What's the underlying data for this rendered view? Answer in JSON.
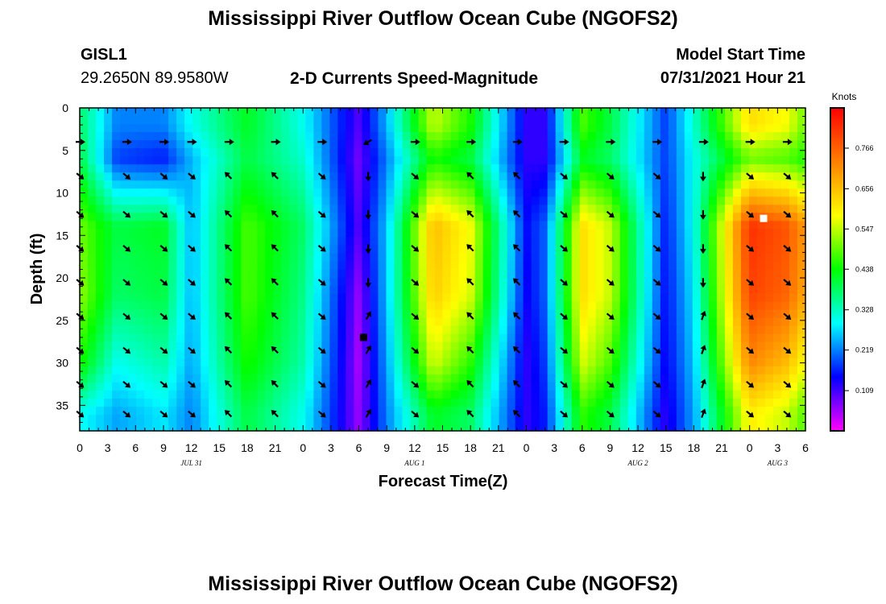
{
  "page": {
    "title_top": "Mississippi River Outflow Ocean Cube (NGOFS2)",
    "title_bottom": "Mississippi River Outflow Ocean Cube (NGOFS2)",
    "station_name": "GISL1",
    "station_coords": "29.2650N  89.9580W",
    "plot_title": "2-D Currents Speed-Magnitude",
    "model_start_label": "Model Start Time",
    "model_start_value": "07/31/2021 Hour 21"
  },
  "chart_data": {
    "type": "heatmap",
    "title": "2-D Currents Speed-Magnitude",
    "xlabel": "Forecast Time(Z)",
    "ylabel": "Depth (ft)",
    "x_tick_labels": [
      "0",
      "3",
      "6",
      "9",
      "12",
      "15",
      "18",
      "21",
      "0",
      "3",
      "6",
      "9",
      "12",
      "15",
      "18",
      "21",
      "0",
      "3",
      "6",
      "9",
      "12",
      "15",
      "18",
      "21",
      "0",
      "3",
      "6"
    ],
    "x_range_hours": [
      0,
      78
    ],
    "date_labels": [
      {
        "label": "JUL 31",
        "hour": 12
      },
      {
        "label": "AUG 1",
        "hour": 36
      },
      {
        "label": "AUG 2",
        "hour": 60
      },
      {
        "label": "AUG 3",
        "hour": 75
      }
    ],
    "y_ticks": [
      0,
      5,
      10,
      15,
      20,
      25,
      30,
      35
    ],
    "ylim": [
      0,
      38
    ],
    "y_inverted": true,
    "colorbar": {
      "unit": "Knots",
      "ticks": [
        0.766,
        0.656,
        0.547,
        0.438,
        0.328,
        0.219,
        0.109
      ],
      "range": [
        0.0,
        0.875
      ],
      "tick_labels": [
        "0.766",
        "0.656",
        "0.547",
        "0.438",
        "0.328",
        "0.219",
        "0.109"
      ],
      "colors": [
        "#ff00ff",
        "#0000ff",
        "#00ffff",
        "#00ff00",
        "#ffff00",
        "#ff8000",
        "#ff0000"
      ]
    },
    "speed_knots": {
      "depths_ft": [
        2,
        6,
        14,
        22,
        30,
        36
      ],
      "times_h": [
        0,
        4,
        9,
        12,
        18,
        24,
        30,
        33,
        38,
        42,
        48,
        50,
        54,
        57,
        63,
        66,
        72,
        76,
        78
      ],
      "values": [
        [
          0.38,
          0.22,
          0.22,
          0.3,
          0.42,
          0.3,
          0.1,
          0.25,
          0.55,
          0.45,
          0.12,
          0.12,
          0.48,
          0.4,
          0.18,
          0.32,
          0.62,
          0.58,
          0.5
        ],
        [
          0.4,
          0.18,
          0.16,
          0.25,
          0.4,
          0.32,
          0.08,
          0.22,
          0.45,
          0.4,
          0.12,
          0.12,
          0.42,
          0.38,
          0.18,
          0.3,
          0.5,
          0.48,
          0.45
        ],
        [
          0.5,
          0.4,
          0.42,
          0.25,
          0.48,
          0.38,
          0.1,
          0.26,
          0.66,
          0.58,
          0.15,
          0.2,
          0.62,
          0.55,
          0.16,
          0.3,
          0.82,
          0.78,
          0.7
        ],
        [
          0.52,
          0.38,
          0.4,
          0.25,
          0.48,
          0.36,
          0.06,
          0.26,
          0.64,
          0.56,
          0.14,
          0.2,
          0.62,
          0.55,
          0.15,
          0.28,
          0.8,
          0.76,
          0.68
        ],
        [
          0.45,
          0.3,
          0.34,
          0.24,
          0.45,
          0.34,
          0.05,
          0.24,
          0.56,
          0.46,
          0.12,
          0.18,
          0.56,
          0.48,
          0.14,
          0.26,
          0.72,
          0.66,
          0.58
        ],
        [
          0.3,
          0.24,
          0.28,
          0.22,
          0.4,
          0.3,
          0.06,
          0.22,
          0.42,
          0.38,
          0.12,
          0.16,
          0.46,
          0.4,
          0.12,
          0.24,
          0.6,
          0.55,
          0.48
        ]
      ]
    },
    "vector_arrows": {
      "times_h": [
        0,
        5,
        9,
        12,
        16,
        21,
        26,
        31,
        36,
        42,
        47,
        52,
        57,
        62,
        67,
        72,
        76
      ],
      "depths_ft": [
        4,
        8,
        12.5,
        16.5,
        20.5,
        24.5,
        28.5,
        32.5,
        36
      ],
      "direction": "southeastward (down-right) on most of the grid; northwestward (up-left) near hours 16-24 and 42-50; eastward at the surface"
    },
    "markers": [
      {
        "hour": 30.5,
        "depth_ft": 27,
        "color": "#000000"
      },
      {
        "hour": 73.5,
        "depth_ft": 13,
        "color": "#ffffff"
      }
    ]
  }
}
